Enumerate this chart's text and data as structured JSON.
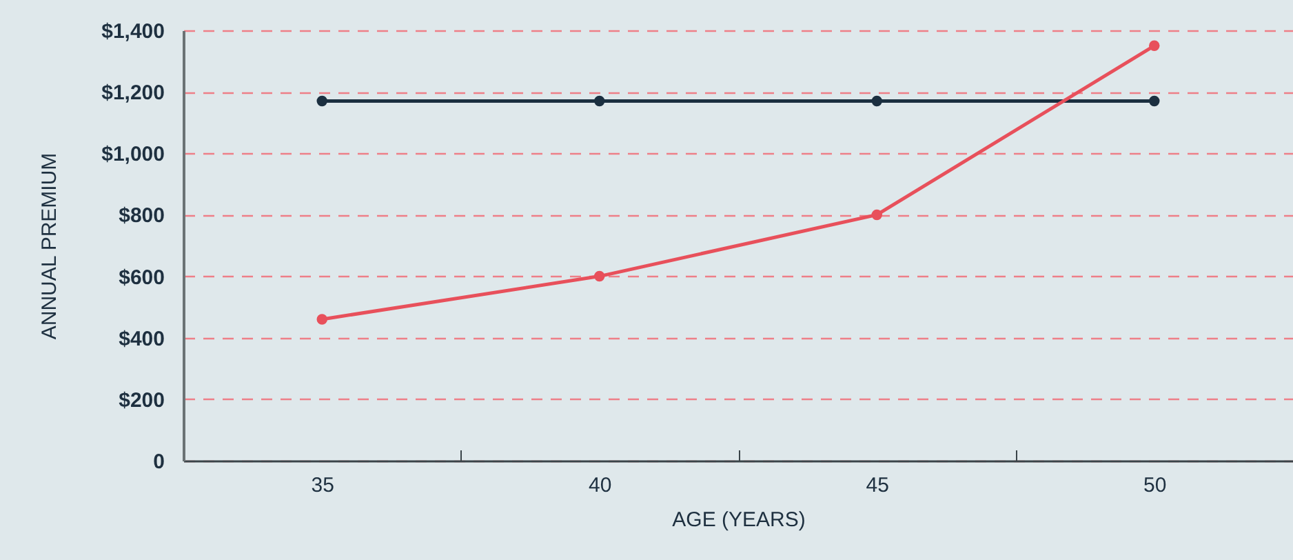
{
  "chart_data": {
    "type": "line",
    "xlabel": "AGE (YEARS)",
    "ylabel": "ANNUAL PREMIUM",
    "categories": [
      "35",
      "40",
      "45",
      "50"
    ],
    "series": [
      {
        "color": "#1b2f40",
        "values": [
          1170,
          1170,
          1170,
          1170
        ]
      },
      {
        "color": "#e8505b",
        "values": [
          460,
          600,
          800,
          1350
        ]
      }
    ],
    "ylim": [
      0,
      1400
    ],
    "yticks": [
      0,
      {
        "value": 200,
        "label": "$200"
      },
      {
        "value": 400,
        "label": "$400"
      },
      {
        "value": 600,
        "label": "$600"
      },
      {
        "value": 800,
        "label": "$800"
      },
      {
        "value": 1000,
        "label": "$1,000"
      },
      {
        "value": 1200,
        "label": "$1,200"
      },
      {
        "value": 1400,
        "label": "$1,400"
      }
    ],
    "grid": "y",
    "marker": "circle",
    "line_style": "solid",
    "legend": false
  }
}
